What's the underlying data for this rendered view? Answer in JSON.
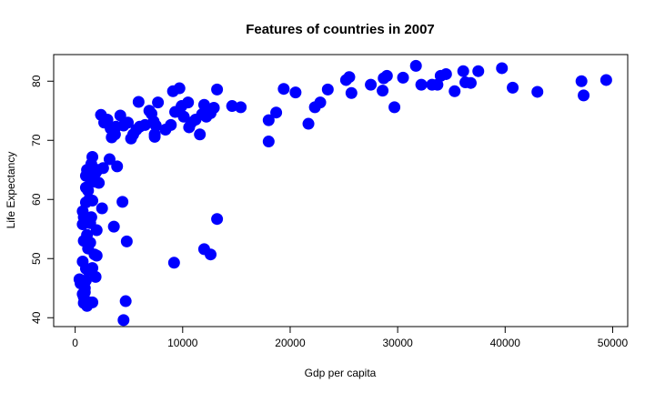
{
  "chart_data": {
    "type": "scatter",
    "title": "Features of countries in 2007",
    "xlabel": "Gdp per capita",
    "ylabel": "Life Expectancy",
    "xlim": [
      -2000,
      51400
    ],
    "ylim": [
      38.5,
      84.5
    ],
    "x_ticks": [
      0,
      10000,
      20000,
      30000,
      40000,
      50000
    ],
    "y_ticks": [
      40,
      50,
      60,
      70,
      80
    ],
    "grid": false,
    "point_color": "#0000ff",
    "series": [
      {
        "points": [
          [
            400,
            46.5
          ],
          [
            500,
            45.8
          ],
          [
            600,
            46.2
          ],
          [
            700,
            44.0
          ],
          [
            800,
            43.5
          ],
          [
            900,
            45.0
          ],
          [
            1000,
            46.3
          ],
          [
            700,
            49.5
          ],
          [
            800,
            42.5
          ],
          [
            1100,
            42.0
          ],
          [
            1300,
            42.6
          ],
          [
            1600,
            42.6
          ],
          [
            900,
            44.3
          ],
          [
            1000,
            48.3
          ],
          [
            1200,
            48.0
          ],
          [
            1600,
            48.4
          ],
          [
            1800,
            50.7
          ],
          [
            2000,
            50.5
          ],
          [
            1900,
            46.9
          ],
          [
            1200,
            51.7
          ],
          [
            1400,
            52.7
          ],
          [
            800,
            53.0
          ],
          [
            1100,
            54.0
          ],
          [
            700,
            55.8
          ],
          [
            800,
            57.0
          ],
          [
            700,
            58.0
          ],
          [
            1100,
            56.8
          ],
          [
            1400,
            56.0
          ],
          [
            1500,
            57.0
          ],
          [
            1000,
            59.5
          ],
          [
            1300,
            60.0
          ],
          [
            1600,
            59.8
          ],
          [
            1000,
            62.0
          ],
          [
            1200,
            61.5
          ],
          [
            1400,
            63.5
          ],
          [
            1800,
            63.0
          ],
          [
            2200,
            62.8
          ],
          [
            2500,
            58.5
          ],
          [
            2000,
            54.8
          ],
          [
            1900,
            64.5
          ],
          [
            1000,
            64.0
          ],
          [
            1100,
            65.0
          ],
          [
            1500,
            66.0
          ],
          [
            1700,
            64.0
          ],
          [
            2100,
            65.0
          ],
          [
            2600,
            65.3
          ],
          [
            3200,
            66.8
          ],
          [
            3900,
            65.6
          ],
          [
            1600,
            67.2
          ],
          [
            3600,
            55.4
          ],
          [
            4400,
            59.6
          ],
          [
            4800,
            52.9
          ],
          [
            4700,
            42.8
          ],
          [
            4500,
            39.6
          ],
          [
            2400,
            74.3
          ],
          [
            2700,
            73.0
          ],
          [
            3000,
            73.5
          ],
          [
            3300,
            72.0
          ],
          [
            3400,
            70.5
          ],
          [
            3700,
            71.0
          ],
          [
            3800,
            72.3
          ],
          [
            4200,
            74.2
          ],
          [
            4500,
            72.5
          ],
          [
            4900,
            73.0
          ],
          [
            5200,
            70.3
          ],
          [
            5400,
            71.0
          ],
          [
            5700,
            71.8
          ],
          [
            6000,
            72.3
          ],
          [
            5900,
            76.5
          ],
          [
            6500,
            72.6
          ],
          [
            6900,
            75.0
          ],
          [
            7100,
            74.5
          ],
          [
            7300,
            73.2
          ],
          [
            7400,
            71.0
          ],
          [
            7500,
            72.5
          ],
          [
            7700,
            76.4
          ],
          [
            7400,
            70.6
          ],
          [
            8400,
            71.8
          ],
          [
            8900,
            72.6
          ],
          [
            9100,
            78.3
          ],
          [
            9300,
            74.8
          ],
          [
            9700,
            78.8
          ],
          [
            9900,
            75.8
          ],
          [
            10100,
            74.0
          ],
          [
            10600,
            72.2
          ],
          [
            10800,
            73.0
          ],
          [
            10500,
            76.4
          ],
          [
            11200,
            73.5
          ],
          [
            11600,
            71.0
          ],
          [
            12000,
            76.0
          ],
          [
            12200,
            74.0
          ],
          [
            12600,
            74.6
          ],
          [
            12900,
            75.5
          ],
          [
            13200,
            78.6
          ],
          [
            11800,
            74.4
          ],
          [
            9200,
            49.3
          ],
          [
            12000,
            51.6
          ],
          [
            12600,
            50.7
          ],
          [
            13200,
            56.7
          ],
          [
            14600,
            75.8
          ],
          [
            15400,
            75.6
          ],
          [
            18000,
            73.4
          ],
          [
            18000,
            69.8
          ],
          [
            18700,
            74.7
          ],
          [
            19400,
            78.7
          ],
          [
            20500,
            78.1
          ],
          [
            21700,
            72.8
          ],
          [
            22300,
            75.6
          ],
          [
            22800,
            76.4
          ],
          [
            23500,
            78.6
          ],
          [
            25200,
            80.2
          ],
          [
            25500,
            80.7
          ],
          [
            25700,
            78.0
          ],
          [
            27500,
            79.4
          ],
          [
            28600,
            78.4
          ],
          [
            28700,
            80.5
          ],
          [
            29000,
            80.9
          ],
          [
            29700,
            75.6
          ],
          [
            30500,
            80.6
          ],
          [
            31700,
            82.6
          ],
          [
            32200,
            79.4
          ],
          [
            33200,
            79.4
          ],
          [
            33700,
            79.4
          ],
          [
            34000,
            80.9
          ],
          [
            34500,
            81.2
          ],
          [
            35300,
            78.3
          ],
          [
            36100,
            81.7
          ],
          [
            36300,
            79.8
          ],
          [
            36800,
            79.7
          ],
          [
            37500,
            81.7
          ],
          [
            39700,
            82.2
          ],
          [
            40700,
            78.9
          ],
          [
            43000,
            78.2
          ],
          [
            47100,
            80.0
          ],
          [
            47300,
            77.6
          ],
          [
            49400,
            80.2
          ]
        ]
      }
    ]
  }
}
